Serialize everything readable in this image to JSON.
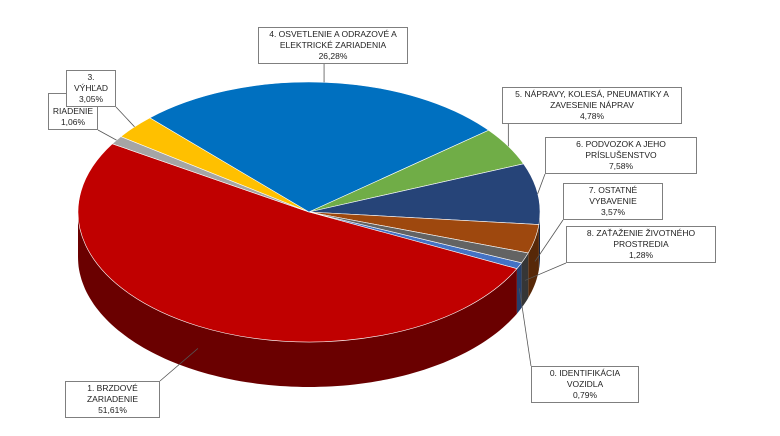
{
  "chart_data": {
    "type": "pie",
    "categories": [
      "0. IDENTIFIKÁCIA VOZIDLA",
      "1. BRZDOVÉ ZARIADENIE",
      "2. RIADENIE",
      "3. VÝHĽAD",
      "4. OSVETLENIE A ODRAZOVÉ A ELEKTRICKÉ ZARIADENIA",
      "5. NÁPRAVY, KOLESÁ, PNEUMATIKY A ZAVESENIE NÁPRAV",
      "6. PODVOZOK A JEHO PRÍSLUŠENSTVO",
      "7. OSTATNÉ VYBAVENIE",
      "8. ZAŤAŽENIE ŽIVOTNÉHO PROSTREDIA"
    ],
    "values": [
      0.79,
      51.61,
      1.06,
      3.05,
      26.28,
      4.78,
      7.58,
      3.57,
      1.28
    ],
    "value_labels": [
      "0,79%",
      "51,61%",
      "1,06%",
      "3,05%",
      "26,28%",
      "4,78%",
      "7,58%",
      "3,57%",
      "1,28%"
    ],
    "colors": [
      "#4472c4",
      "#c00000",
      "#a5a5a5",
      "#ffc000",
      "#0070c0",
      "#70ad47",
      "#264478",
      "#9e480e",
      "#636363"
    ]
  }
}
